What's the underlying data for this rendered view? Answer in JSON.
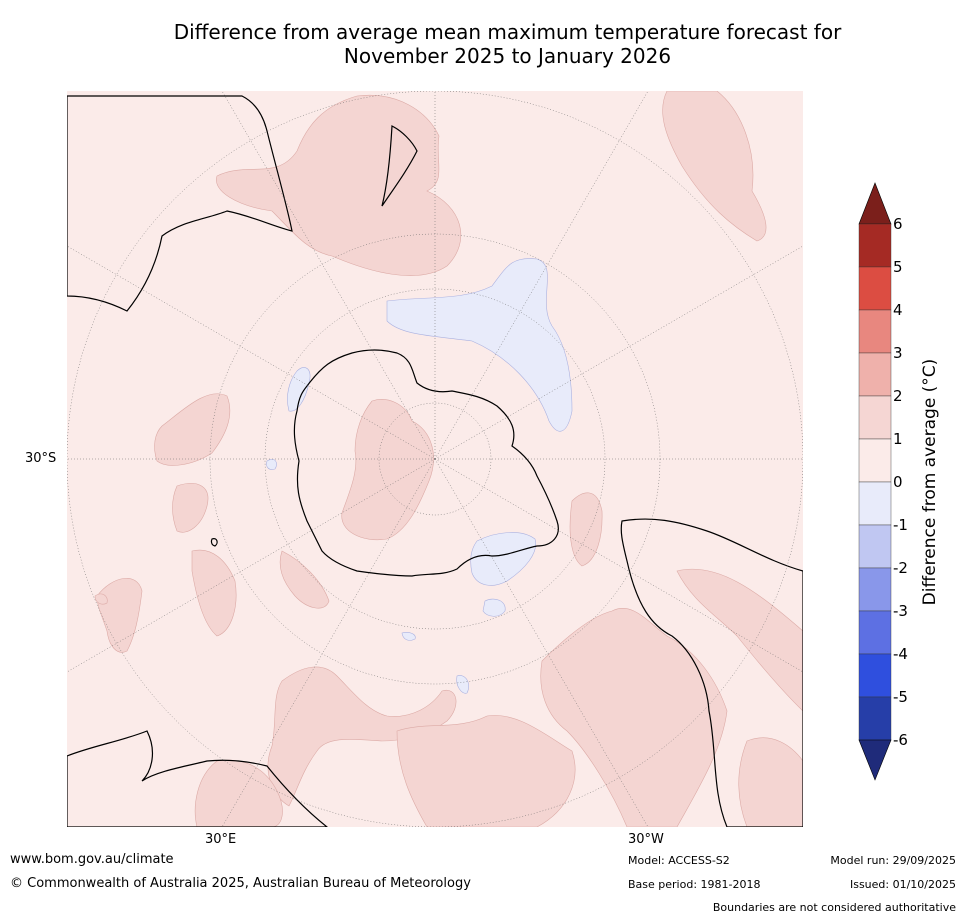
{
  "title": {
    "line1": "Difference from average mean maximum temperature forecast for",
    "line2": "November 2025 to January 2026"
  },
  "map": {
    "projection": "south polar stereographic",
    "background_color": "#fbebe9",
    "lat_labels": [
      "30°S"
    ],
    "lon_labels": [
      "30°E",
      "30°W"
    ]
  },
  "colorbar": {
    "label": "Difference from average (°C)",
    "ticks": [
      "6",
      "5",
      "4",
      "3",
      "2",
      "1",
      "0",
      "-1",
      "-2",
      "-3",
      "-4",
      "-5",
      "-6"
    ],
    "colors": [
      "#a52a24",
      "#dc4d42",
      "#e8877f",
      "#efb1ab",
      "#f5d6d3",
      "#fbebe9",
      "#e8ebfa",
      "#c0c7f2",
      "#8997ea",
      "#5d70e3",
      "#2f4fde",
      "#263ea8"
    ],
    "over_color": "#7b1f1b",
    "under_color": "#1f2b7a"
  },
  "footer": {
    "website": "www.bom.gov.au/climate",
    "copyright": "© Commonwealth of Australia 2025, Australian Bureau of Meteorology",
    "model": "Model: ACCESS-S2",
    "base_period": "Base period: 1981-2018",
    "model_run": "Model run: 29/09/2025",
    "issued": "Issued: 01/10/2025",
    "disclaimer": "Boundaries are not considered authoritative"
  }
}
